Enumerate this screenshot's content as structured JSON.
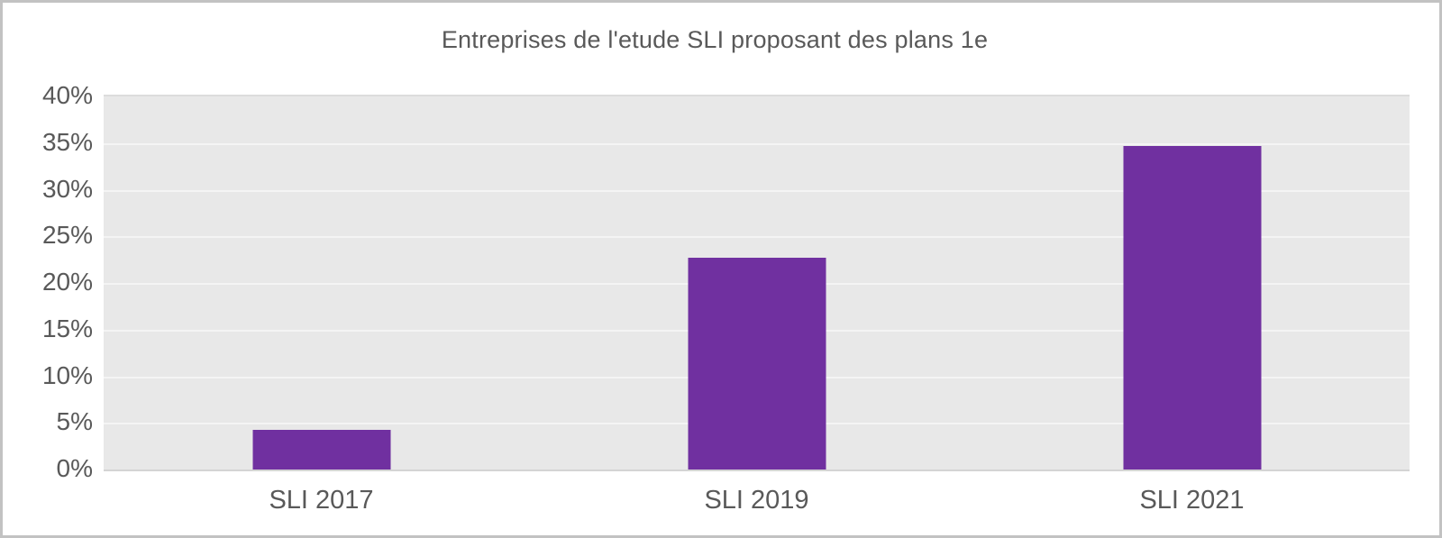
{
  "chart_data": {
    "type": "bar",
    "title": "Entreprises de l'etude SLI proposant des plans 1e",
    "categories": [
      "SLI 2017",
      "SLI 2019",
      "SLI 2021"
    ],
    "values": [
      4.3,
      22.7,
      34.7
    ],
    "xlabel": "",
    "ylabel": "",
    "ylim": [
      0,
      40
    ],
    "yticks": [
      0,
      5,
      10,
      15,
      20,
      25,
      30,
      35,
      40
    ],
    "ytick_suffix": "%",
    "grid": true,
    "legend": "none",
    "colors": {
      "bar": "#7030a0",
      "text": "#595959",
      "plot_background": "#e8e8e8",
      "gridline": "#f4f4f4",
      "frame_border": "#c2c2c2"
    }
  }
}
